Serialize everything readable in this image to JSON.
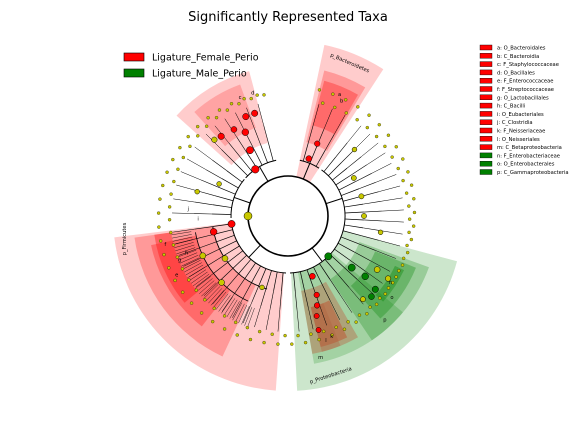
{
  "chart_data": {
    "type": "cladogram",
    "title": "Significantly Represented Taxa",
    "colors": {
      "female": "#ff0000",
      "male": "#008000",
      "neutral": "#c8c800",
      "leaf": "#c8c800"
    },
    "groups": [
      {
        "name": "Ligature_Female_Perio",
        "color": "#ff0000"
      },
      {
        "name": "Ligature_Male_Perio",
        "color": "#008000"
      }
    ],
    "taxa": [
      {
        "key": "a",
        "name": "O_Bacteroidales",
        "group": "female"
      },
      {
        "key": "b",
        "name": "C_Bacteroidia",
        "group": "female"
      },
      {
        "key": "c",
        "name": "F_Staphylococcaceae",
        "group": "female"
      },
      {
        "key": "d",
        "name": "O_Bacillales",
        "group": "female"
      },
      {
        "key": "e",
        "name": "F_Enterococcaceae",
        "group": "female"
      },
      {
        "key": "f",
        "name": "F_Streptococcaceae",
        "group": "female"
      },
      {
        "key": "g",
        "name": "O_Lactobacillales",
        "group": "female"
      },
      {
        "key": "h",
        "name": "C_Bacilli",
        "group": "female"
      },
      {
        "key": "i",
        "name": "O_Eubacteriales",
        "group": "female"
      },
      {
        "key": "j",
        "name": "C_Clostridia",
        "group": "female"
      },
      {
        "key": "k",
        "name": "F_Neisseriaceae",
        "group": "female"
      },
      {
        "key": "l",
        "name": "O_Neisseriales",
        "group": "female"
      },
      {
        "key": "m",
        "name": "C_Betaproteobacteria",
        "group": "female"
      },
      {
        "key": "n",
        "name": "F_Enterobacteriaceae",
        "group": "male"
      },
      {
        "key": "o",
        "name": "O_Enterobacterales",
        "group": "male"
      },
      {
        "key": "p",
        "name": "C_Gammaproteobacteria",
        "group": "male"
      }
    ],
    "phyla": [
      "p_Bacteroidetes",
      "p_Firmicutes",
      "p_Proteobacteria"
    ],
    "clade_labels": [
      "a",
      "b",
      "c",
      "d",
      "e",
      "f",
      "g",
      "h",
      "i",
      "j",
      "k",
      "l",
      "m",
      "n",
      "o",
      "p"
    ]
  }
}
